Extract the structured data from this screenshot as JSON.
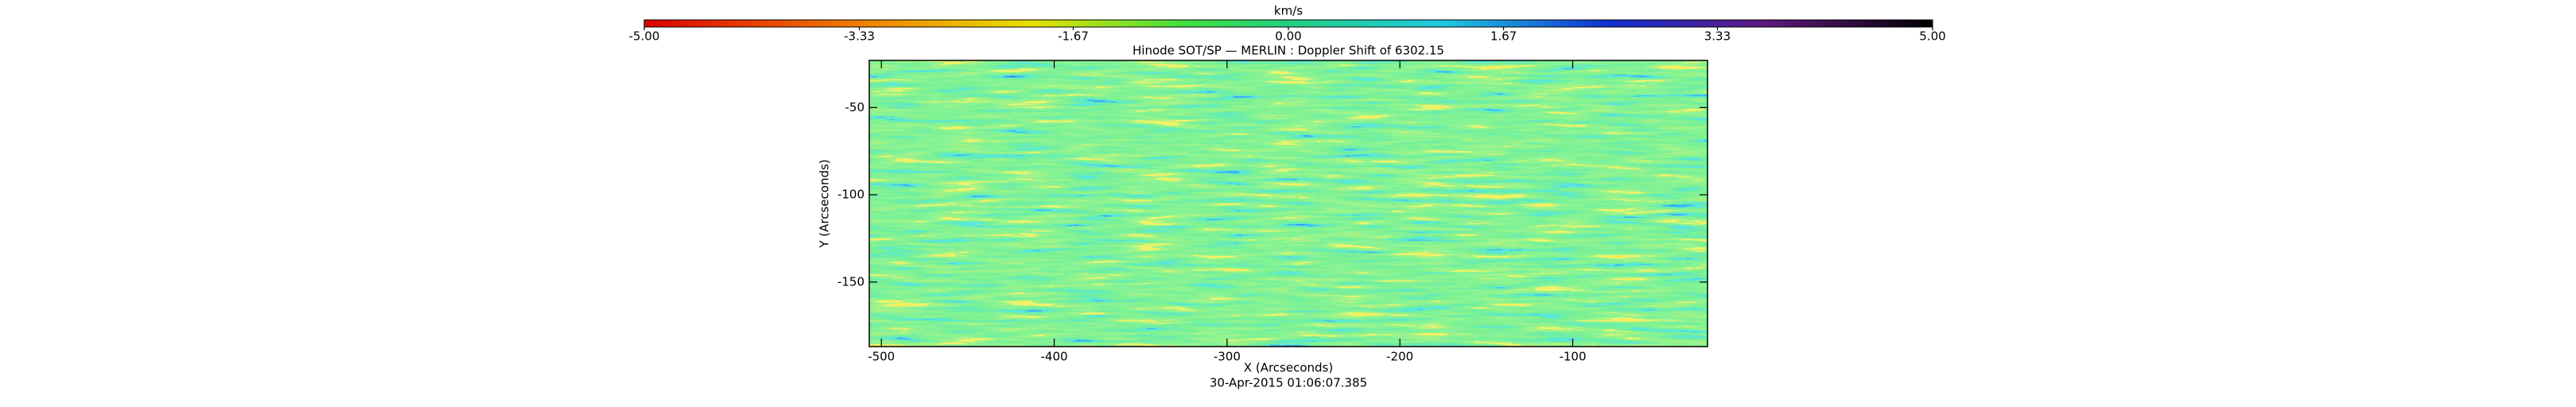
{
  "chart_data": {
    "type": "image",
    "title": "Hinode SOT/SP — MERLIN : Doppler Shift of 6302.15",
    "xlabel": "X (Arcseconds)",
    "ylabel": "Y (Arcseconds)",
    "annotation": "30-Apr-2015 01:06:07.385",
    "xlim": [
      -507,
      -22
    ],
    "xticks": [
      -500,
      -400,
      -300,
      -200,
      -100
    ],
    "ylim": [
      -23,
      -187
    ],
    "yticks": [
      -50,
      -100,
      -150
    ],
    "colorbar": {
      "label": "km/s",
      "lim": [
        -5,
        5
      ],
      "ticks": [
        {
          "value": -5,
          "label": "-5.00"
        },
        {
          "value": -3.33,
          "label": "-3.33"
        },
        {
          "value": -1.67,
          "label": "-1.67"
        },
        {
          "value": 0,
          "label": "0.00"
        },
        {
          "value": 1.67,
          "label": "1.67"
        },
        {
          "value": 3.33,
          "label": "3.33"
        },
        {
          "value": 5,
          "label": "5.00"
        }
      ]
    }
  }
}
